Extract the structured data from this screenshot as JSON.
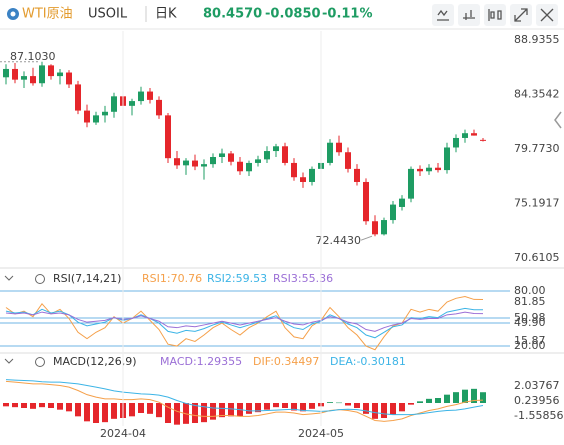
{
  "header": {
    "name": "WTI原油",
    "symbol": "USOIL",
    "period": "日K",
    "price": "80.4570",
    "change": "-0.0850",
    "change_pct": "-0.11%"
  },
  "chart_data": [
    {
      "type": "candlestick",
      "up_color": "#1e9c63",
      "down_color": "#e5262b",
      "ylim": [
        69.77,
        89.69
      ],
      "yticks": [
        88.9355,
        84.3542,
        {
          "value": 79.773,
          "label": "79.7730"
        },
        75.1917,
        70.6105
      ],
      "annotations": [
        "87.1030",
        "72.4430"
      ],
      "open": [
        85.8,
        86.5,
        85.6,
        85.9,
        85.3,
        86.8,
        85.9,
        86.2,
        85.2,
        83.0,
        82.0,
        82.6,
        82.9,
        84.2,
        83.4,
        83.8,
        84.6,
        83.9,
        82.6,
        79.0,
        78.4,
        78.8,
        78.3,
        78.5,
        79.1,
        79.4,
        78.7,
        77.9,
        78.6,
        78.9,
        79.6,
        80.0,
        78.6,
        77.4,
        77.0,
        78.1,
        78.6,
        80.3,
        79.5,
        78.1,
        77.0,
        73.7,
        72.6,
        73.8,
        74.9,
        75.6,
        78.1,
        77.9,
        78.2,
        78.0,
        79.9,
        80.7,
        81.1,
        80.54
      ],
      "high": [
        86.9,
        87.0,
        86.3,
        86.6,
        87.103,
        86.9,
        86.5,
        86.4,
        85.5,
        83.5,
        82.9,
        83.4,
        84.5,
        84.8,
        84.0,
        85.0,
        84.9,
        84.2,
        82.8,
        79.6,
        79.0,
        79.3,
        78.9,
        79.4,
        79.8,
        79.6,
        79.1,
        78.8,
        79.2,
        80.0,
        80.2,
        80.3,
        79.0,
        77.8,
        78.3,
        79.0,
        80.6,
        80.9,
        79.9,
        78.5,
        77.3,
        74.2,
        74.0,
        75.4,
        75.9,
        78.3,
        78.4,
        78.5,
        78.6,
        80.3,
        81.0,
        81.4,
        81.4,
        80.7
      ],
      "low": [
        85.2,
        85.3,
        84.9,
        85.1,
        85.0,
        85.6,
        85.2,
        84.9,
        82.7,
        81.6,
        81.8,
        82.0,
        82.4,
        83.1,
        82.6,
        83.5,
        83.6,
        82.3,
        78.6,
        78.1,
        77.6,
        78.0,
        77.2,
        78.2,
        78.6,
        78.4,
        77.6,
        77.5,
        78.3,
        78.6,
        79.1,
        78.4,
        77.1,
        76.5,
        76.7,
        77.8,
        78.4,
        79.2,
        77.8,
        76.7,
        73.4,
        72.443,
        72.5,
        73.5,
        74.6,
        75.3,
        77.5,
        77.6,
        77.8,
        77.7,
        79.5,
        80.3,
        80.9,
        80.4
      ],
      "close": [
        86.5,
        85.6,
        85.9,
        85.3,
        86.8,
        85.9,
        86.2,
        85.2,
        83.0,
        82.0,
        82.6,
        82.9,
        84.2,
        83.4,
        83.8,
        84.6,
        83.9,
        82.6,
        79.0,
        78.4,
        78.8,
        78.3,
        78.5,
        79.1,
        79.4,
        78.7,
        77.9,
        78.6,
        78.9,
        79.6,
        80.0,
        78.6,
        77.4,
        77.0,
        78.1,
        78.6,
        80.3,
        79.5,
        78.1,
        77.0,
        73.7,
        72.6,
        73.8,
        75.1,
        75.6,
        78.1,
        77.9,
        78.2,
        78.0,
        79.9,
        80.7,
        81.1,
        80.9,
        80.457
      ]
    },
    {
      "type": "line",
      "title": "RSI(7,14,21)",
      "ylim": [
        13.5,
        87.6
      ],
      "yticks": [
        {
          "value": 80,
          "label": "80.00"
        },
        {
          "value": 20,
          "label": "20.00"
        }
      ],
      "grid_color": "#6fb6e6",
      "side_labels": [
        "81.85",
        "50.98",
        "49.90",
        "15.87"
      ],
      "series": [
        {
          "name": "RSI1:70.76",
          "color": "#f5a04a",
          "values": [
            62,
            55,
            58,
            52,
            66,
            55,
            60,
            50,
            35,
            28,
            35,
            40,
            52,
            45,
            50,
            58,
            48,
            38,
            22,
            20,
            28,
            25,
            32,
            40,
            45,
            38,
            32,
            40,
            45,
            52,
            58,
            40,
            30,
            28,
            42,
            48,
            62,
            52,
            40,
            32,
            20,
            16,
            30,
            42,
            45,
            60,
            57,
            60,
            58,
            68,
            72,
            74,
            70.8,
            70.76
          ]
        },
        {
          "name": "RSI2:59.53",
          "color": "#3cb4e6",
          "values": [
            58,
            56,
            57,
            54,
            60,
            56,
            58,
            54,
            46,
            42,
            44,
            46,
            51,
            48,
            50,
            54,
            50,
            45,
            36,
            34,
            37,
            36,
            39,
            43,
            46,
            43,
            40,
            43,
            46,
            50,
            53,
            45,
            40,
            38,
            44,
            47,
            54,
            50,
            44,
            40,
            32,
            29,
            35,
            41,
            43,
            51,
            50,
            52,
            51,
            57,
            59,
            61,
            59.6,
            59.53
          ]
        },
        {
          "name": "RSI3:55.36",
          "color": "#9b6fd6",
          "values": [
            56,
            55,
            56,
            54,
            57,
            55,
            56,
            54,
            49,
            46,
            47,
            48,
            51,
            49,
            50,
            53,
            50,
            47,
            41,
            40,
            42,
            41,
            43,
            45,
            47,
            45,
            43,
            45,
            47,
            49,
            51,
            47,
            44,
            43,
            46,
            48,
            52,
            50,
            46,
            44,
            38,
            36,
            40,
            43,
            45,
            50,
            49,
            50,
            50,
            54,
            55,
            57,
            55.4,
            55.36
          ]
        }
      ]
    },
    {
      "type": "macd",
      "title": "MACD(12,26,9)",
      "ylim": [
        -4.08,
        4.56
      ],
      "yticks": [
        2.03767,
        0.23956,
        -1.55856
      ],
      "up_color": "#1e9c63",
      "down_color": "#e5262b",
      "categories": [
        null,
        null,
        null,
        null,
        null,
        null,
        null,
        null,
        null,
        null,
        null,
        null,
        null,
        "2024-04",
        null,
        null,
        null,
        null,
        null,
        null,
        null,
        null,
        null,
        null,
        null,
        null,
        null,
        null,
        null,
        null,
        null,
        null,
        null,
        null,
        null,
        "2024-05",
        null,
        null,
        null,
        null,
        null,
        null,
        null,
        null,
        null,
        null,
        null,
        null,
        null,
        null,
        null,
        null,
        null,
        null
      ],
      "series": [
        {
          "name": "MACD:1.29355",
          "color": "#9b6fd6",
          "values": [
            -0.4,
            -0.5,
            -0.6,
            -0.7,
            -0.5,
            -0.6,
            -0.8,
            -1.0,
            -1.6,
            -2.2,
            -2.4,
            -2.3,
            -1.9,
            -1.8,
            -1.6,
            -1.2,
            -1.3,
            -1.7,
            -2.4,
            -2.6,
            -2.5,
            -2.4,
            -2.3,
            -2.0,
            -1.7,
            -1.6,
            -1.6,
            -1.3,
            -1.1,
            -0.8,
            -0.5,
            -0.6,
            -0.9,
            -1.0,
            -0.7,
            -0.4,
            0.1,
            0.05,
            -0.3,
            -0.6,
            -1.3,
            -1.9,
            -1.8,
            -1.4,
            -1.0,
            -0.2,
            0.2,
            0.5,
            0.6,
            1.0,
            1.3,
            1.6,
            1.7,
            1.29355
          ]
        },
        {
          "name": "DIF:0.34497",
          "color": "#f5a04a",
          "values": [
            2.6,
            2.5,
            2.4,
            2.3,
            2.3,
            2.2,
            2.1,
            1.9,
            1.5,
            1.0,
            0.7,
            0.5,
            0.5,
            0.4,
            0.4,
            0.5,
            0.4,
            0.1,
            -0.5,
            -1.0,
            -1.3,
            -1.5,
            -1.6,
            -1.6,
            -1.5,
            -1.5,
            -1.6,
            -1.6,
            -1.5,
            -1.3,
            -1.1,
            -1.1,
            -1.2,
            -1.4,
            -1.3,
            -1.2,
            -0.9,
            -0.8,
            -0.9,
            -1.1,
            -1.6,
            -2.1,
            -2.2,
            -2.1,
            -1.9,
            -1.5,
            -1.2,
            -0.9,
            -0.7,
            -0.4,
            -0.2,
            0.1,
            0.3,
            0.34497
          ]
        },
        {
          "name": "DEA:-0.30181",
          "color": "#3cb4e6",
          "values": [
            2.8,
            2.75,
            2.7,
            2.65,
            2.55,
            2.5,
            2.5,
            2.4,
            2.3,
            2.1,
            1.9,
            1.7,
            1.45,
            1.3,
            1.2,
            1.1,
            1.05,
            0.95,
            0.7,
            0.3,
            -0.05,
            -0.3,
            -0.45,
            -0.6,
            -0.65,
            -0.7,
            -0.8,
            -0.95,
            -0.95,
            -0.9,
            -0.85,
            -0.8,
            -0.75,
            -0.9,
            -0.95,
            -1.0,
            -0.95,
            -0.8,
            -0.75,
            -0.8,
            -0.95,
            -1.15,
            -1.3,
            -1.4,
            -1.4,
            -1.4,
            -1.3,
            -1.15,
            -1.0,
            -0.9,
            -0.85,
            -0.7,
            -0.5,
            -0.30181
          ]
        }
      ]
    }
  ]
}
